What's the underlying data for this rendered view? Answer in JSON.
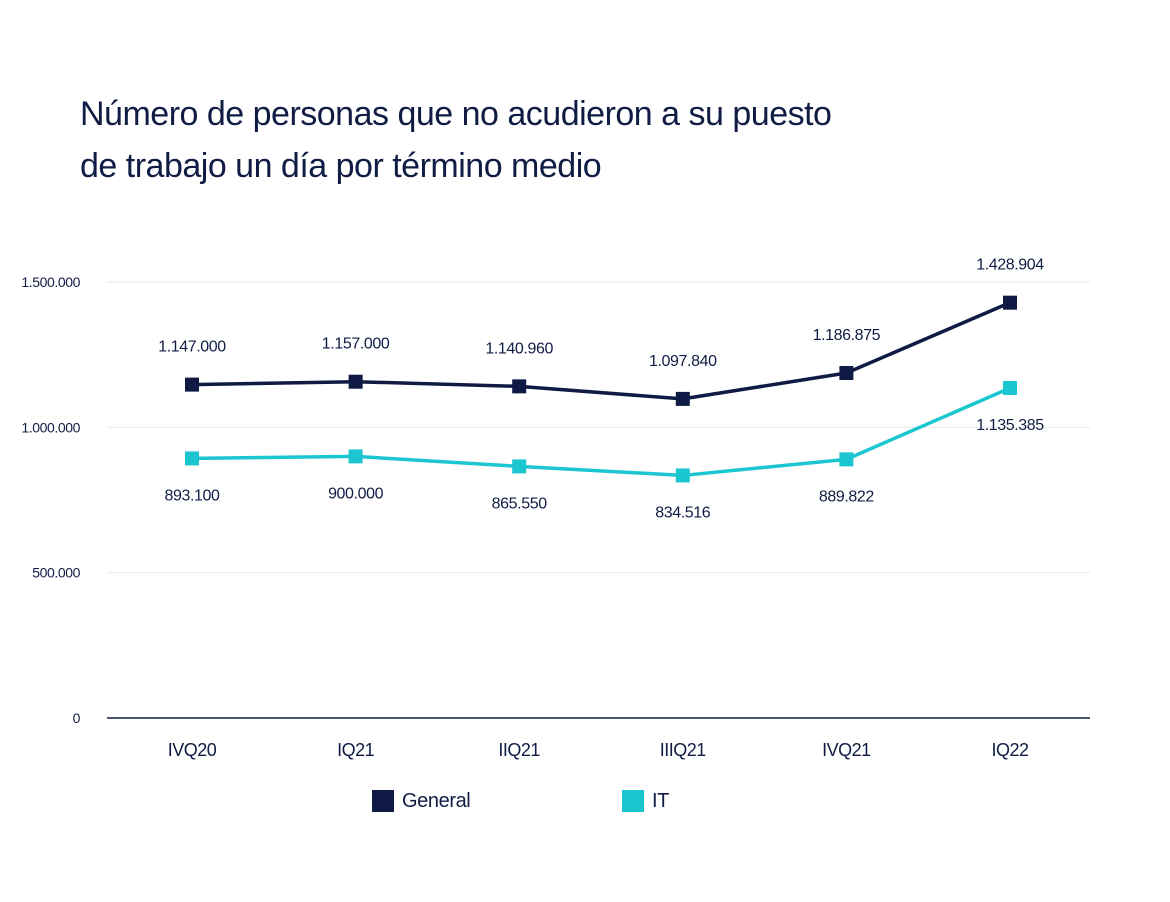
{
  "title": {
    "line1": "Número de personas que no acudieron a su puesto",
    "line2": "de trabajo un día por término medio"
  },
  "colors": {
    "General": "#0f1b44",
    "IT": "#1cc6d0",
    "text": "#101c44",
    "gridline": "#ececec",
    "axis": "#101c44"
  },
  "chart_data": {
    "type": "line",
    "categories": [
      "IVQ20",
      "IQ21",
      "IIQ21",
      "IIIQ21",
      "IVQ21",
      "IQ22"
    ],
    "series": [
      {
        "name": "General",
        "values": [
          1147000,
          1157000,
          1140960,
          1097840,
          1186875,
          1428904
        ],
        "labels": [
          "1.147.000",
          "1.157.000",
          "1.140.960",
          "1.097.840",
          "1.186.875",
          "1.428.904"
        ],
        "label_position": "above",
        "marker": "square"
      },
      {
        "name": "IT",
        "values": [
          893100,
          900000,
          865550,
          834516,
          889822,
          1135385
        ],
        "labels": [
          "893.100",
          "900.000",
          "865.550",
          "834.516",
          "889.822",
          "1.135.385"
        ],
        "label_position": "below",
        "marker": "square"
      }
    ],
    "yticks": [
      0,
      500000,
      1000000,
      1500000
    ],
    "ytick_labels": [
      "0",
      "500.000",
      "1.000.000",
      "1.500.000"
    ],
    "ylim": [
      0,
      1500000
    ],
    "xlabel": "",
    "ylabel": "",
    "grid": "horizontal",
    "legend": "bottom-center"
  }
}
